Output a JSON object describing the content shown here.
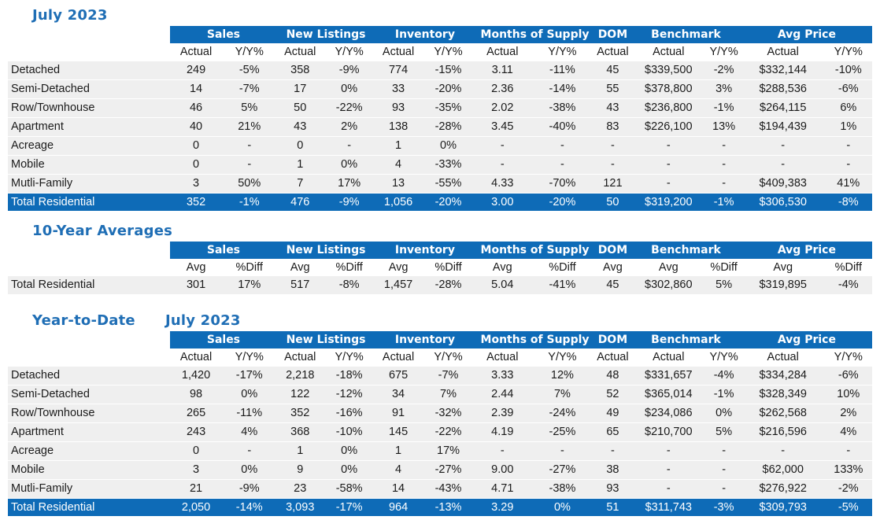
{
  "titles": {
    "monthly": "July 2023",
    "ten_year": "10-Year Averages",
    "ytd": "Year-to-Date",
    "ytd_period": "July 2023"
  },
  "groups": [
    "Sales",
    "New Listings",
    "Inventory",
    "Months of Supply",
    "DOM",
    "Benchmark",
    "Avg Price"
  ],
  "subheaders": [
    "Actual",
    "Y/Y%",
    "Actual",
    "Y/Y%",
    "Actual",
    "Y/Y%",
    "Actual",
    "Y/Y%",
    "Actual",
    "Actual",
    "Y/Y%",
    "Actual",
    "Y/Y%"
  ],
  "avg_subheaders": [
    "Avg",
    "%Diff",
    "Avg",
    "%Diff",
    "Avg",
    "%Diff",
    "Avg",
    "%Diff",
    "Avg",
    "Avg",
    "%Diff",
    "Avg",
    "%Diff"
  ],
  "monthly_rows": [
    {
      "label": "Detached",
      "cells": [
        "249",
        "-5%",
        "358",
        "-9%",
        "774",
        "-15%",
        "3.11",
        "-11%",
        "45",
        "$339,500",
        "-2%",
        "$332,144",
        "-10%"
      ]
    },
    {
      "label": "Semi-Detached",
      "cells": [
        "14",
        "-7%",
        "17",
        "0%",
        "33",
        "-20%",
        "2.36",
        "-14%",
        "55",
        "$378,800",
        "3%",
        "$288,536",
        "-6%"
      ]
    },
    {
      "label": "Row/Townhouse",
      "cells": [
        "46",
        "5%",
        "50",
        "-22%",
        "93",
        "-35%",
        "2.02",
        "-38%",
        "43",
        "$236,800",
        "-1%",
        "$264,115",
        "6%"
      ]
    },
    {
      "label": "Apartment",
      "cells": [
        "40",
        "21%",
        "43",
        "2%",
        "138",
        "-28%",
        "3.45",
        "-40%",
        "83",
        "$226,100",
        "13%",
        "$194,439",
        "1%"
      ]
    },
    {
      "label": "Acreage",
      "cells": [
        "0",
        "-",
        "0",
        "-",
        "1",
        "0%",
        "-",
        "-",
        "-",
        "-",
        "-",
        "-",
        "-"
      ]
    },
    {
      "label": "Mobile",
      "cells": [
        "0",
        "-",
        "1",
        "0%",
        "4",
        "-33%",
        "-",
        "-",
        "-",
        "-",
        "-",
        "-",
        "-"
      ]
    },
    {
      "label": "Mutli-Family",
      "cells": [
        "3",
        "50%",
        "7",
        "17%",
        "13",
        "-55%",
        "4.33",
        "-70%",
        "121",
        "-",
        "-",
        "$409,383",
        "41%"
      ]
    }
  ],
  "monthly_total": {
    "label": "Total Residential",
    "cells": [
      "352",
      "-1%",
      "476",
      "-9%",
      "1,056",
      "-20%",
      "3.00",
      "-20%",
      "50",
      "$319,200",
      "-1%",
      "$306,530",
      "-8%"
    ]
  },
  "ten_year_row": {
    "label": "Total Residential",
    "cells": [
      "301",
      "17%",
      "517",
      "-8%",
      "1,457",
      "-28%",
      "5.04",
      "-41%",
      "45",
      "$302,860",
      "5%",
      "$319,895",
      "-4%"
    ]
  },
  "ytd_rows": [
    {
      "label": "Detached",
      "cells": [
        "1,420",
        "-17%",
        "2,218",
        "-18%",
        "675",
        "-7%",
        "3.33",
        "12%",
        "48",
        "$331,657",
        "-4%",
        "$334,284",
        "-6%"
      ]
    },
    {
      "label": "Semi-Detached",
      "cells": [
        "98",
        "0%",
        "122",
        "-12%",
        "34",
        "7%",
        "2.44",
        "7%",
        "52",
        "$365,014",
        "-1%",
        "$328,349",
        "10%"
      ]
    },
    {
      "label": "Row/Townhouse",
      "cells": [
        "265",
        "-11%",
        "352",
        "-16%",
        "91",
        "-32%",
        "2.39",
        "-24%",
        "49",
        "$234,086",
        "0%",
        "$262,568",
        "2%"
      ]
    },
    {
      "label": "Apartment",
      "cells": [
        "243",
        "4%",
        "368",
        "-10%",
        "145",
        "-22%",
        "4.19",
        "-25%",
        "65",
        "$210,700",
        "5%",
        "$216,596",
        "4%"
      ]
    },
    {
      "label": "Acreage",
      "cells": [
        "0",
        "-",
        "1",
        "0%",
        "1",
        "17%",
        "-",
        "-",
        "-",
        "-",
        "-",
        "-",
        "-"
      ]
    },
    {
      "label": "Mobile",
      "cells": [
        "3",
        "0%",
        "9",
        "0%",
        "4",
        "-27%",
        "9.00",
        "-27%",
        "38",
        "-",
        "-",
        "$62,000",
        "133%"
      ]
    },
    {
      "label": "Mutli-Family",
      "cells": [
        "21",
        "-9%",
        "23",
        "-58%",
        "14",
        "-43%",
        "4.71",
        "-38%",
        "93",
        "-",
        "-",
        "$276,922",
        "-2%"
      ]
    }
  ],
  "ytd_total": {
    "label": "Total Residential",
    "cells": [
      "2,050",
      "-14%",
      "3,093",
      "-17%",
      "964",
      "-13%",
      "3.29",
      "0%",
      "51",
      "$311,743",
      "-3%",
      "$309,793",
      "-5%"
    ]
  },
  "colors": {
    "header_blue": "#0e6bb7",
    "title_blue": "#1f6eb5",
    "row_gray": "#efefef"
  }
}
